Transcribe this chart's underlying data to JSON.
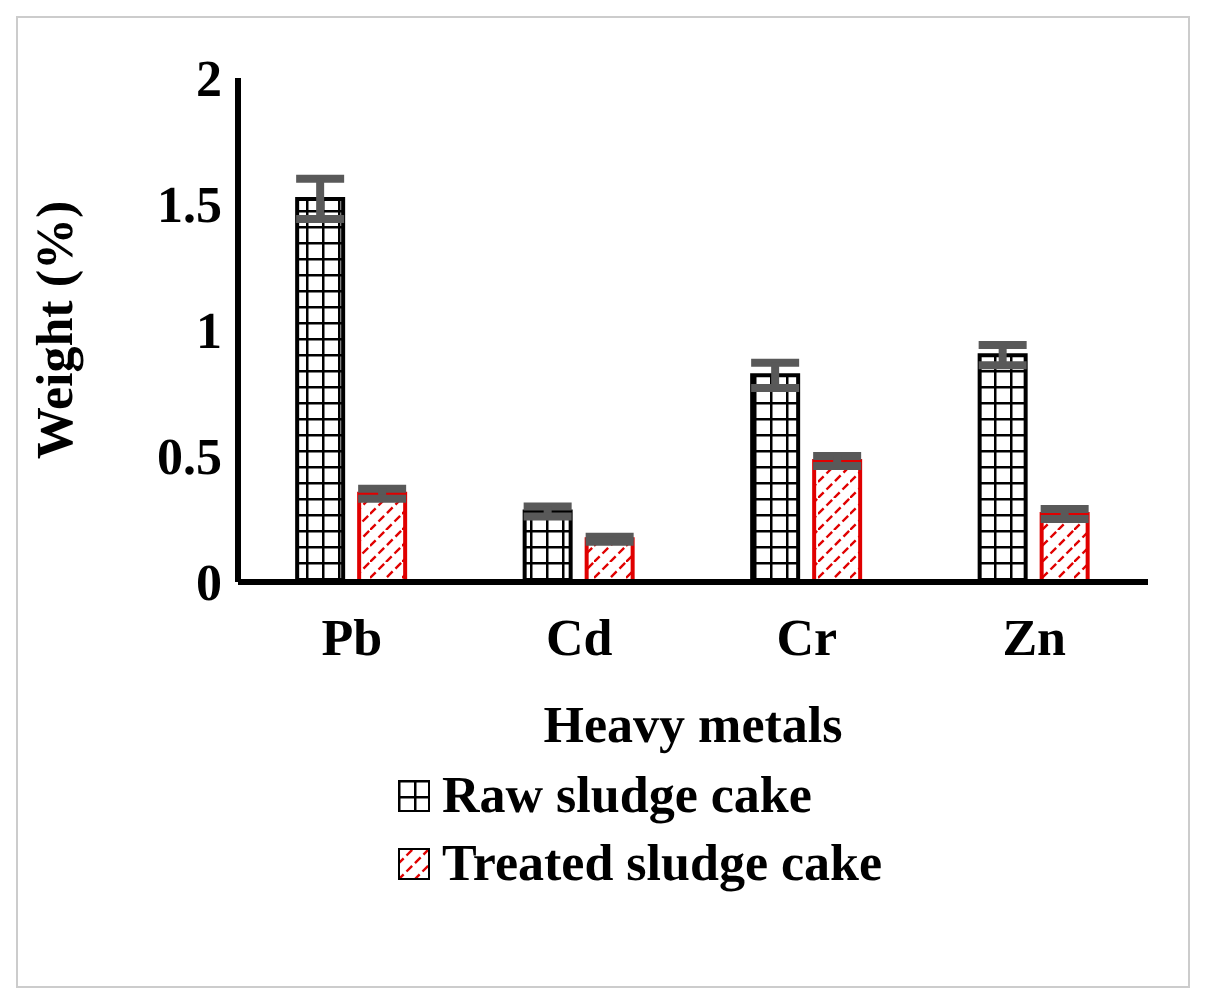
{
  "chart_data": {
    "type": "bar",
    "xlabel": "Heavy metals",
    "ylabel": "Weight  (%)",
    "categories": [
      "Pb",
      "Cd",
      "Cr",
      "Zn"
    ],
    "series": [
      {
        "name": "Raw sludge cake",
        "color": "#000000",
        "values": [
          1.52,
          0.28,
          0.82,
          0.9
        ],
        "errors": [
          0.08,
          0.02,
          0.05,
          0.04
        ]
      },
      {
        "name": "Treated sludge cake",
        "color": "#e00000",
        "values": [
          0.35,
          0.17,
          0.48,
          0.27
        ],
        "errors": [
          0.02,
          0.01,
          0.02,
          0.02
        ]
      }
    ],
    "ylim": [
      0,
      2
    ],
    "yticks": [
      0,
      0.5,
      1,
      1.5,
      2
    ],
    "grid": false,
    "legend": "bottom"
  }
}
